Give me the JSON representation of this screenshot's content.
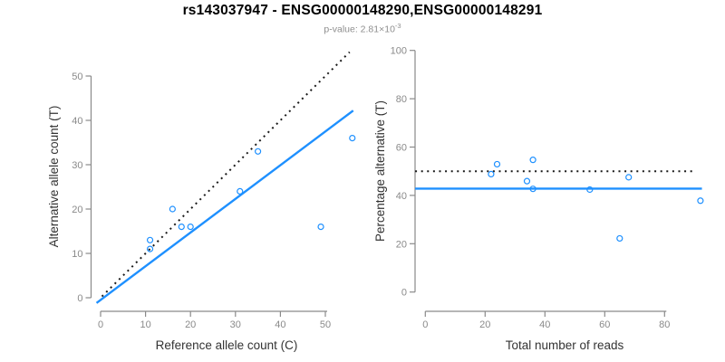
{
  "header": {
    "title": "rs143037947 - ENSG00000148290,ENSG00000148291",
    "subtitle_text": "p-value: 2.81×10",
    "subtitle_exponent": "-3"
  },
  "colors": {
    "background": "#FFFFFF",
    "title_black": "#000000",
    "subtitle_gray": "#8E8E8E",
    "axis_gray": "#8A8A8A",
    "tick_label_gray": "#8A8A8A",
    "axis_title_gray": "#333333",
    "accent_blue": "#1E90FF",
    "dotted_black": "#1A1A1A"
  },
  "chart_data": [
    {
      "type": "scatter",
      "panel": "left",
      "xlabel": "Reference allele count (C)",
      "ylabel": "Alternative allele count (T)",
      "x_ticks": [
        0,
        10,
        20,
        30,
        40,
        50
      ],
      "y_ticks": [
        0,
        10,
        20,
        30,
        40,
        50
      ],
      "xlim": [
        -2,
        58
      ],
      "ylim": [
        -2,
        57
      ],
      "grid": false,
      "legend": false,
      "points": [
        [
          11,
          11
        ],
        [
          11,
          13
        ],
        [
          16,
          20
        ],
        [
          18,
          16
        ],
        [
          20,
          16
        ],
        [
          31,
          24
        ],
        [
          35,
          33
        ],
        [
          49,
          16
        ],
        [
          56,
          36
        ]
      ],
      "lines": [
        {
          "name": "identity-line",
          "meaning": "y = x reference",
          "style": "dotted",
          "color": "#1A1A1A",
          "width": 2,
          "x1": 0.3,
          "y1": 0.3,
          "x2": 55.4,
          "y2": 55.4
        },
        {
          "name": "regression-line",
          "meaning": "fitted slope ~0.76",
          "style": "solid",
          "color": "#1E90FF",
          "width": 2.4,
          "x1": -0.9,
          "y1": -1.18,
          "x2": 56.2,
          "y2": 42.2
        }
      ]
    },
    {
      "type": "scatter",
      "panel": "right",
      "xlabel": "Total number of reads",
      "ylabel": "Percentage alternative (T)",
      "x_ticks": [
        0,
        20,
        40,
        60,
        80
      ],
      "y_ticks": [
        0,
        20,
        40,
        60,
        80,
        100
      ],
      "xlim": [
        -4,
        94
      ],
      "ylim": [
        0,
        100
      ],
      "grid": false,
      "legend": false,
      "points": [
        [
          22,
          48.8
        ],
        [
          24,
          52.9
        ],
        [
          36,
          54.7
        ],
        [
          34,
          45.9
        ],
        [
          36,
          42.7
        ],
        [
          55,
          42.4
        ],
        [
          68,
          47.5
        ],
        [
          65,
          22.2
        ],
        [
          92,
          37.8
        ]
      ],
      "lines": [
        {
          "name": "fifty-percent-line",
          "meaning": "50% reference",
          "style": "dotted",
          "color": "#1A1A1A",
          "width": 2,
          "x1": -3.4,
          "y1": 50,
          "x2": 90.6,
          "y2": 50
        },
        {
          "name": "mean-percentage-line",
          "meaning": "overall alternative fraction ~42.8%",
          "style": "solid",
          "color": "#1E90FF",
          "width": 2.4,
          "x1": -3.4,
          "y1": 42.8,
          "x2": 92.5,
          "y2": 42.8
        }
      ]
    }
  ]
}
